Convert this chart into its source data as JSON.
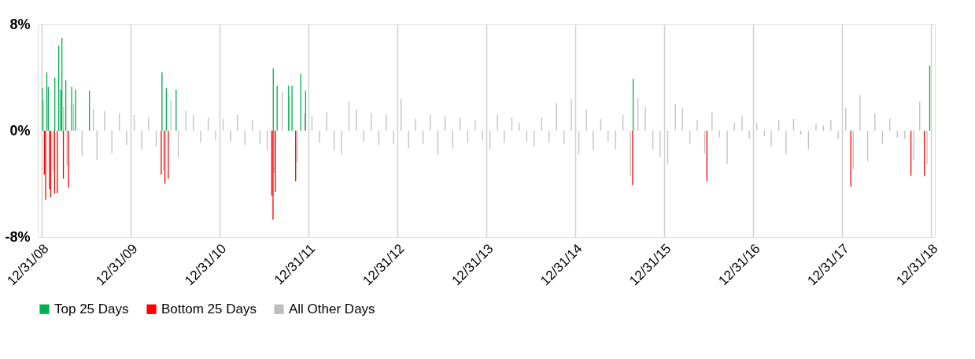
{
  "chart_data": {
    "type": "bar",
    "xlim": [
      "2008-12-31",
      "2018-12-31"
    ],
    "xticks": [
      {
        "value": "2008-12-31",
        "label": "12/31/08"
      },
      {
        "value": "2009-12-31",
        "label": "12/31/09"
      },
      {
        "value": "2010-12-31",
        "label": "12/31/10"
      },
      {
        "value": "2011-12-31",
        "label": "12/31/11"
      },
      {
        "value": "2012-12-31",
        "label": "12/31/12"
      },
      {
        "value": "2013-12-31",
        "label": "12/31/13"
      },
      {
        "value": "2014-12-31",
        "label": "12/31/14"
      },
      {
        "value": "2015-12-31",
        "label": "12/31/15"
      },
      {
        "value": "2016-12-31",
        "label": "12/31/16"
      },
      {
        "value": "2017-12-31",
        "label": "12/31/17"
      },
      {
        "value": "2018-12-31",
        "label": "12/31/18"
      }
    ],
    "ylim": [
      -8,
      8
    ],
    "yticks": [
      {
        "value": -8,
        "label": "-8%"
      },
      {
        "value": 0,
        "label": "0%"
      },
      {
        "value": 8,
        "label": "8%"
      }
    ],
    "grid": "x",
    "legend": "bottom",
    "series": [
      {
        "name": "Top 25 Days",
        "color": "#00b050",
        "x": [
          "2009-01-02",
          "2009-01-21",
          "2009-01-27",
          "2009-02-23",
          "2009-03-11",
          "2009-03-19",
          "2009-03-24",
          "2009-04-09",
          "2009-05-03",
          "2009-05-19",
          "2009-07-15",
          "2010-05-09",
          "2010-05-27",
          "2010-07-06",
          "2011-08-09",
          "2011-08-25",
          "2011-10-11",
          "2011-10-25",
          "2011-11-30",
          "2011-12-20",
          "2015-08-26",
          "2018-12-26"
        ],
        "values": [
          3.2,
          4.4,
          3.3,
          4.0,
          6.4,
          3.1,
          7.0,
          3.8,
          3.3,
          3.1,
          3.0,
          4.4,
          3.2,
          3.1,
          4.7,
          3.4,
          3.4,
          3.4,
          4.3,
          3.0,
          3.9,
          4.9
        ]
      },
      {
        "name": "Bottom 25 Days",
        "color": "#ff0000",
        "x": [
          "2009-01-11",
          "2009-01-16",
          "2009-02-01",
          "2009-02-06",
          "2009-02-22",
          "2009-03-05",
          "2009-03-30",
          "2009-04-20",
          "2010-05-06",
          "2010-05-21",
          "2010-06-04",
          "2011-08-03",
          "2011-08-08",
          "2011-08-18",
          "2011-11-09",
          "2015-08-24",
          "2016-06-24",
          "2018-02-05",
          "2018-10-10",
          "2018-12-04"
        ],
        "values": [
          -3.3,
          -5.2,
          -4.4,
          -5.0,
          -4.7,
          -4.7,
          -3.6,
          -4.3,
          -3.3,
          -4.0,
          -3.6,
          -4.9,
          -6.7,
          -4.6,
          -3.8,
          -4.1,
          -3.8,
          -4.2,
          -3.4,
          -3.4
        ]
      },
      {
        "name": "All Other Days",
        "color": "#bfbfbf",
        "x": [
          "2009-01-07",
          "2009-02-15",
          "2009-03-31",
          "2009-04-14",
          "2009-05-11",
          "2009-06-15",
          "2009-07-31",
          "2009-08-15",
          "2009-09-15",
          "2009-10-15",
          "2009-11-15",
          "2009-12-15",
          "2010-01-15",
          "2010-02-15",
          "2010-03-15",
          "2010-04-15",
          "2010-05-15",
          "2010-06-15",
          "2010-07-15",
          "2010-08-15",
          "2010-09-15",
          "2010-10-15",
          "2010-11-15",
          "2010-12-15",
          "2011-01-15",
          "2011-02-15",
          "2011-03-15",
          "2011-04-15",
          "2011-05-15",
          "2011-06-15",
          "2011-07-15",
          "2011-08-13",
          "2011-09-15",
          "2011-10-15",
          "2011-11-15",
          "2011-12-15",
          "2012-01-15",
          "2012-02-15",
          "2012-03-15",
          "2012-04-15",
          "2012-05-15",
          "2012-06-15",
          "2012-07-15",
          "2012-08-15",
          "2012-09-15",
          "2012-10-15",
          "2012-11-15",
          "2012-12-15",
          "2013-01-15",
          "2013-02-15",
          "2013-03-15",
          "2013-04-15",
          "2013-05-15",
          "2013-06-15",
          "2013-07-15",
          "2013-08-15",
          "2013-09-15",
          "2013-10-15",
          "2013-11-15",
          "2013-12-15",
          "2014-01-15",
          "2014-02-15",
          "2014-03-15",
          "2014-04-15",
          "2014-05-15",
          "2014-06-15",
          "2014-07-15",
          "2014-08-15",
          "2014-09-15",
          "2014-10-15",
          "2014-11-15",
          "2014-12-15",
          "2015-01-15",
          "2015-02-15",
          "2015-03-15",
          "2015-04-15",
          "2015-05-15",
          "2015-06-15",
          "2015-07-15",
          "2015-08-15",
          "2015-09-15",
          "2015-10-15",
          "2015-11-15",
          "2015-12-15",
          "2016-01-15",
          "2016-02-15",
          "2016-03-15",
          "2016-04-15",
          "2016-05-15",
          "2016-06-15",
          "2016-07-15",
          "2016-08-15",
          "2016-09-15",
          "2016-10-15",
          "2016-11-15",
          "2016-12-15",
          "2017-01-15",
          "2017-02-15",
          "2017-03-15",
          "2017-04-15",
          "2017-05-15",
          "2017-06-15",
          "2017-07-15",
          "2017-08-15",
          "2017-09-15",
          "2017-10-15",
          "2017-11-15",
          "2017-12-15",
          "2018-01-15",
          "2018-02-15",
          "2018-03-15",
          "2018-04-15",
          "2018-05-15",
          "2018-06-15",
          "2018-07-15",
          "2018-08-15",
          "2018-09-15",
          "2018-10-21",
          "2018-11-15",
          "2018-12-15"
        ],
        "values": [
          2.3,
          -3.0,
          1.8,
          -2.6,
          2.0,
          -1.9,
          1.6,
          -2.2,
          1.5,
          -1.7,
          1.3,
          -1.1,
          1.2,
          -1.4,
          1.0,
          -1.2,
          -3.0,
          2.3,
          -2.0,
          1.5,
          1.2,
          -0.9,
          1.0,
          -0.7,
          0.9,
          -0.8,
          1.2,
          -1.1,
          0.8,
          -1.0,
          -1.5,
          -3.2,
          2.9,
          2.6,
          -2.4,
          1.3,
          1.1,
          -0.9,
          1.4,
          -1.5,
          -1.8,
          2.2,
          1.6,
          -0.8,
          1.3,
          -1.1,
          1.2,
          -1.0,
          2.4,
          -1.3,
          0.9,
          -1.0,
          1.2,
          -1.8,
          1.1,
          -1.3,
          1.0,
          -0.9,
          0.8,
          -0.7,
          -1.4,
          1.2,
          -0.9,
          1.0,
          0.6,
          -0.8,
          -1.2,
          1.0,
          -0.9,
          2.1,
          -1.0,
          2.4,
          -1.8,
          1.6,
          -1.5,
          0.9,
          -0.8,
          -1.4,
          1.2,
          -3.4,
          2.5,
          1.8,
          -1.4,
          -2.0,
          -2.5,
          2.0,
          1.7,
          -1.0,
          0.8,
          -1.7,
          1.4,
          -0.5,
          -2.5,
          0.6,
          1.1,
          -0.6,
          0.6,
          -0.4,
          -1.2,
          0.8,
          -1.8,
          0.9,
          -0.3,
          -1.4,
          0.5,
          0.4,
          0.8,
          -0.6,
          1.7,
          -2.9,
          2.7,
          -2.3,
          1.3,
          -1.0,
          0.9,
          -0.5,
          -0.6,
          -2.2,
          2.2,
          -2.5
        ]
      }
    ]
  }
}
